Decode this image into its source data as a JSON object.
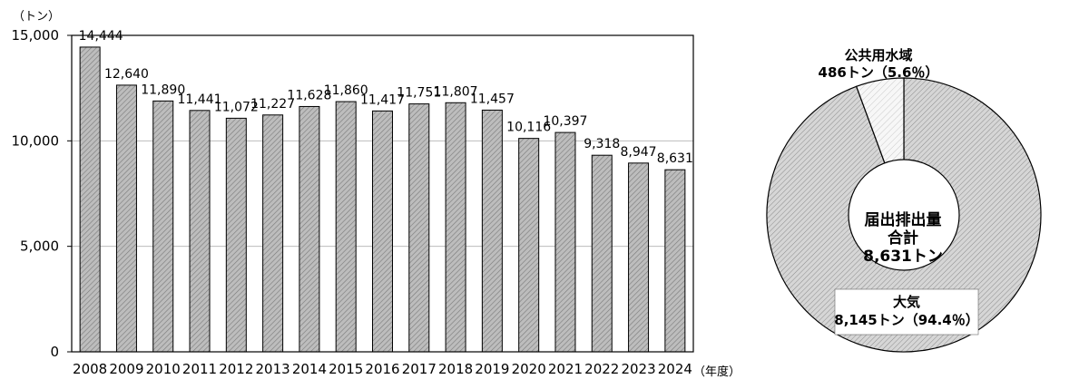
{
  "chart_data": [
    {
      "type": "bar",
      "title": "",
      "xlabel": "（年度）",
      "ylabel": "（トン）",
      "ylim": [
        0,
        15000
      ],
      "yticks": [
        0,
        5000,
        10000,
        15000
      ],
      "ytick_labels": [
        "0",
        "5,000",
        "10,000",
        "15,000"
      ],
      "grid": true,
      "categories": [
        "2008",
        "2009",
        "2010",
        "2011",
        "2012",
        "2013",
        "2014",
        "2015",
        "2016",
        "2017",
        "2018",
        "2019",
        "2020",
        "2021",
        "2022",
        "2023",
        "2024"
      ],
      "values": [
        14444,
        12640,
        11890,
        11441,
        11072,
        11227,
        11628,
        11860,
        11417,
        11751,
        11807,
        11457,
        10116,
        10397,
        9318,
        8947,
        8631
      ],
      "value_labels": [
        "14,444",
        "12,640",
        "11,890",
        "11,441",
        "11,072",
        "11,227",
        "11,628",
        "11,860",
        "11,417",
        "11,751",
        "11,807",
        "11,457",
        "10,116",
        "10,397",
        "9,318",
        "8,947",
        "8,631"
      ]
    },
    {
      "type": "pie",
      "style": "donut",
      "center_label": [
        "届出排出量",
        "合計",
        "8,631トン"
      ],
      "slices": [
        {
          "name": "大気",
          "value": 8145,
          "percent": 94.4,
          "label_line2": "8,145トン（94.4％）"
        },
        {
          "name": "公共用水域",
          "value": 486,
          "percent": 5.6,
          "label_line2": "486トン（5.6％）"
        }
      ]
    }
  ],
  "colors": {
    "bar_fill": "#a3a3a3",
    "bar_stroke": "#000000",
    "grid": "#bdbdbd",
    "pie_air": "#c8c8c8",
    "pie_water": "#f0f0f0"
  }
}
